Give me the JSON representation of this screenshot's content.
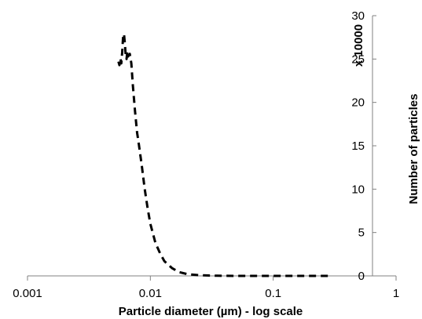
{
  "chart_data": {
    "type": "line",
    "title": "",
    "xlabel": "Particle diameter (µm) - log scale",
    "ylabel": "Number of particles",
    "y_multiplier_label": "x 10000",
    "x_scale": "log",
    "xlim": [
      0.001,
      1
    ],
    "ylim": [
      0,
      30
    ],
    "x_ticks": [
      "0.001",
      "0.01",
      "0.1",
      "1"
    ],
    "y_ticks": [
      "0",
      "5",
      "10",
      "15",
      "20",
      "25",
      "30"
    ],
    "y_axis_side": "right",
    "grid": false,
    "legend": "none",
    "series": [
      {
        "line_style": "dashed",
        "color": "#000000",
        "x": [
          0.0055,
          0.0056,
          0.0057,
          0.0058,
          0.0059,
          0.006,
          0.0061,
          0.0062,
          0.0063,
          0.0064,
          0.0065,
          0.0066,
          0.0068,
          0.007,
          0.0072,
          0.0075,
          0.0078,
          0.008,
          0.0085,
          0.009,
          0.0095,
          0.01,
          0.011,
          0.012,
          0.013,
          0.015,
          0.017,
          0.02,
          0.025,
          0.03,
          0.035,
          0.04,
          0.05,
          0.07,
          0.1,
          0.15,
          0.2,
          0.3
        ],
        "y": [
          24.7,
          24.3,
          25.1,
          24.5,
          25.8,
          27.6,
          27.9,
          26.8,
          25.4,
          25.0,
          25.9,
          25.3,
          25.6,
          24.5,
          22.0,
          19.0,
          16.5,
          15.5,
          12.8,
          10.0,
          7.8,
          6.0,
          3.8,
          2.6,
          1.7,
          0.9,
          0.45,
          0.2,
          0.08,
          0.04,
          0.02,
          0.01,
          0.0,
          0.0,
          0.0,
          0.0,
          0.0,
          0.0
        ]
      }
    ]
  }
}
